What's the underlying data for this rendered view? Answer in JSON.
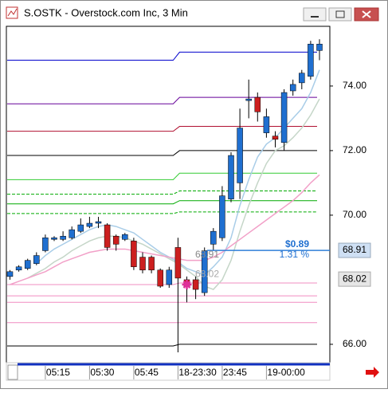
{
  "window": {
    "title": "S.OSTK - Overstock.com Inc, 3 Min"
  },
  "chart_data": {
    "type": "candlestick",
    "categories": [
      null,
      null,
      null,
      null,
      "05:15",
      null,
      null,
      null,
      null,
      "05:30",
      null,
      null,
      null,
      null,
      "05:45",
      null,
      null,
      null,
      null,
      "18-23:30",
      null,
      null,
      null,
      null,
      "23:45",
      null,
      null,
      null,
      null,
      "19-00:00",
      null,
      null,
      null,
      null,
      null,
      null
    ],
    "open": [
      68.1,
      68.3,
      68.35,
      68.5,
      68.9,
      69.25,
      69.25,
      69.3,
      69.5,
      69.65,
      69.75,
      69.7,
      69.35,
      69.25,
      69.2,
      68.7,
      68.7,
      68.3,
      67.85,
      69.0,
      68.0,
      68.0,
      67.6,
      69.1,
      69.3,
      70.5,
      71.0,
      73.55,
      73.65,
      72.55,
      72.45,
      72.25,
      73.85,
      74.1,
      74.3,
      75.1
    ],
    "high": [
      68.3,
      68.45,
      68.65,
      68.85,
      69.4,
      69.35,
      69.5,
      69.65,
      69.9,
      69.95,
      69.95,
      69.75,
      69.4,
      69.45,
      69.3,
      68.85,
      68.75,
      68.35,
      68.4,
      69.3,
      68.1,
      68.1,
      69.0,
      69.6,
      70.9,
      71.95,
      73.3,
      74.2,
      73.8,
      73.3,
      72.6,
      73.9,
      74.2,
      74.5,
      75.4,
      75.45
    ],
    "low": [
      68.0,
      68.25,
      68.3,
      68.45,
      68.85,
      69.2,
      69.2,
      69.25,
      69.45,
      69.6,
      69.6,
      68.9,
      68.9,
      69.2,
      68.3,
      68.2,
      68.2,
      67.75,
      67.75,
      65.75,
      67.3,
      67.4,
      67.5,
      68.9,
      69.2,
      70.4,
      70.5,
      73.0,
      72.9,
      72.4,
      72.1,
      72.0,
      73.7,
      73.9,
      74.2,
      74.8
    ],
    "close": [
      68.25,
      68.4,
      68.6,
      68.75,
      69.3,
      69.3,
      69.35,
      69.55,
      69.7,
      69.75,
      69.8,
      69.0,
      69.1,
      69.4,
      68.4,
      68.3,
      68.3,
      67.8,
      68.3,
      68.05,
      67.8,
      67.7,
      68.9,
      69.5,
      70.6,
      71.85,
      72.7,
      73.6,
      73.2,
      73.05,
      72.35,
      73.8,
      74.05,
      74.4,
      75.3,
      75.3
    ],
    "up_color": "#1f6fd0",
    "down_color": "#cc1f1f",
    "series": [
      {
        "color": "#a9cde8",
        "values": [
          null,
          null,
          null,
          68.5,
          68.75,
          68.95,
          69.1,
          69.25,
          69.4,
          69.55,
          69.65,
          69.7,
          69.65,
          69.55,
          69.45,
          69.25,
          69.05,
          68.85,
          68.7,
          68.55,
          68.35,
          68.25,
          68.15,
          68.4,
          68.7,
          69.3,
          70.3,
          71.1,
          71.8,
          72.2,
          72.4,
          72.7,
          73.0,
          73.3,
          73.8,
          74.5
        ]
      },
      {
        "color": "#c5d6c8",
        "values": [
          null,
          null,
          68.05,
          68.2,
          68.35,
          68.55,
          68.7,
          68.9,
          69.05,
          69.2,
          69.3,
          69.35,
          69.35,
          69.3,
          69.2,
          69.1,
          68.95,
          68.8,
          68.65,
          68.5,
          68.3,
          68.1,
          67.8,
          67.7,
          68.0,
          68.6,
          69.5,
          70.3,
          71.0,
          71.6,
          72.0,
          72.15,
          72.4,
          72.7,
          73.1,
          73.6
        ]
      },
      {
        "color": "#f2a0c8",
        "values": [
          67.85,
          67.95,
          68.05,
          68.15,
          68.25,
          68.4,
          68.55,
          68.65,
          68.75,
          68.85,
          68.9,
          68.95,
          68.95,
          68.95,
          68.9,
          68.85,
          68.8,
          68.75,
          68.7,
          68.65,
          68.6,
          68.6,
          68.6,
          68.7,
          68.85,
          69.05,
          69.25,
          69.45,
          69.65,
          69.85,
          70.05,
          70.25,
          70.45,
          70.7,
          71.0,
          71.25
        ]
      }
    ],
    "levels": [
      {
        "color": "#0000cc",
        "values": [
          74.8,
          75.05
        ]
      },
      {
        "color": "#660099",
        "values": [
          73.45,
          73.65
        ]
      },
      {
        "color": "#b01030",
        "values": [
          72.6,
          72.75
        ]
      },
      {
        "color": "#000000",
        "values": [
          71.85,
          72.0
        ]
      },
      {
        "color": "#33cc33",
        "values": [
          71.1,
          71.3
        ]
      },
      {
        "color": "#00aa00",
        "values": [
          70.65,
          70.75
        ],
        "dashed": true
      },
      {
        "color": "#00aa00",
        "values": [
          70.35,
          70.45
        ]
      },
      {
        "color": "#00aa00",
        "values": [
          70.05,
          70.1
        ],
        "dashed": true
      },
      {
        "color": "#f08cc0",
        "values": [
          67.85,
          67.9
        ]
      },
      {
        "color": "#f08cc0",
        "values": [
          67.5,
          67.5
        ]
      },
      {
        "color": "#f08cc0",
        "values": [
          67.3,
          67.3
        ]
      },
      {
        "color": "#f08cc0",
        "values": [
          66.67,
          66.67
        ]
      },
      {
        "color": "#000000",
        "values": [
          65.95,
          66.0
        ]
      }
    ],
    "break_index": 19,
    "ylim": [
      65.43,
      75.85
    ],
    "yticks": [
      {
        "value": 66,
        "label": "66.00"
      },
      {
        "value": 70,
        "label": "70.00"
      },
      {
        "value": 72,
        "label": "72.00"
      },
      {
        "value": 74,
        "label": "74.00"
      }
    ],
    "price_labels": [
      68.91,
      68.02
    ],
    "change": "$0.89",
    "change_pct": "1.31 %",
    "marker": {
      "index": 20,
      "value": 67.85
    }
  }
}
